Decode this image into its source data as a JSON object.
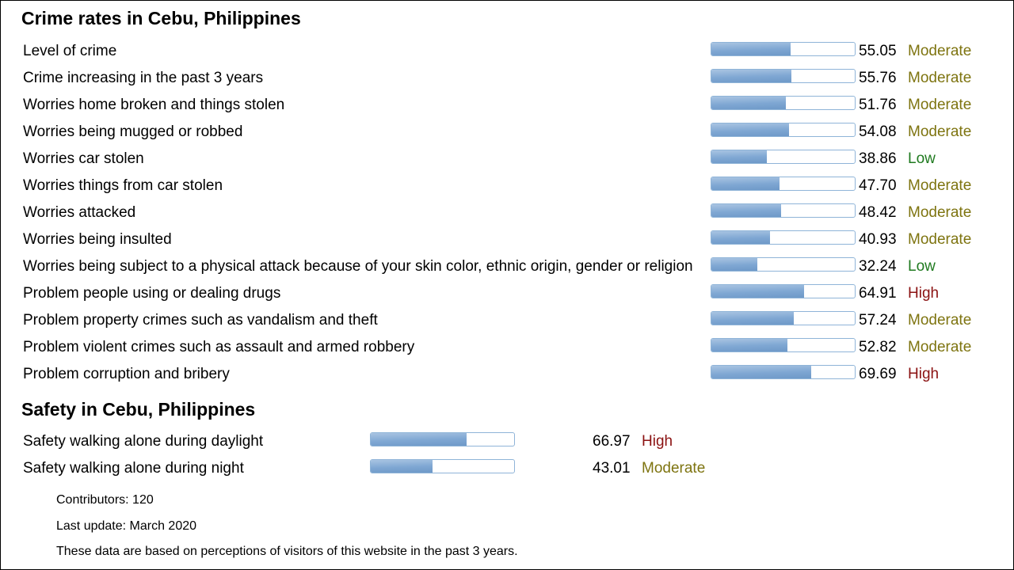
{
  "crime": {
    "title": "Crime rates in Cebu, Philippines",
    "rows": [
      {
        "label": "Level of crime",
        "value": "55.05",
        "level": "Moderate"
      },
      {
        "label": "Crime increasing in the past 3 years",
        "value": "55.76",
        "level": "Moderate"
      },
      {
        "label": "Worries home broken and things stolen",
        "value": "51.76",
        "level": "Moderate"
      },
      {
        "label": "Worries being mugged or robbed",
        "value": "54.08",
        "level": "Moderate"
      },
      {
        "label": "Worries car stolen",
        "value": "38.86",
        "level": "Low"
      },
      {
        "label": "Worries things from car stolen",
        "value": "47.70",
        "level": "Moderate"
      },
      {
        "label": "Worries attacked",
        "value": "48.42",
        "level": "Moderate"
      },
      {
        "label": "Worries being insulted",
        "value": "40.93",
        "level": "Moderate"
      },
      {
        "label": "Worries being subject to a physical attack because of your skin color, ethnic origin, gender or religion",
        "value": "32.24",
        "level": "Low"
      },
      {
        "label": "Problem people using or dealing drugs",
        "value": "64.91",
        "level": "High"
      },
      {
        "label": "Problem property crimes such as vandalism and theft",
        "value": "57.24",
        "level": "Moderate"
      },
      {
        "label": "Problem violent crimes such as assault and armed robbery",
        "value": "52.82",
        "level": "Moderate"
      },
      {
        "label": "Problem corruption and bribery",
        "value": "69.69",
        "level": "High"
      }
    ]
  },
  "safety": {
    "title": "Safety in Cebu, Philippines",
    "rows": [
      {
        "label": "Safety walking alone during daylight",
        "value": "66.97",
        "level": "High"
      },
      {
        "label": "Safety walking alone during night",
        "value": "43.01",
        "level": "Moderate"
      }
    ]
  },
  "footer": {
    "contributors": "Contributors: 120",
    "last_update": "Last update: March 2020",
    "note": "These data are based on perceptions of visitors of this website in the past 3 years."
  },
  "colors": {
    "moderate": "#7e7410",
    "low": "#1f7a1f",
    "high": "#8b1212",
    "bar_fill": "#7fa7d3",
    "bar_border": "#8fb4d8"
  }
}
